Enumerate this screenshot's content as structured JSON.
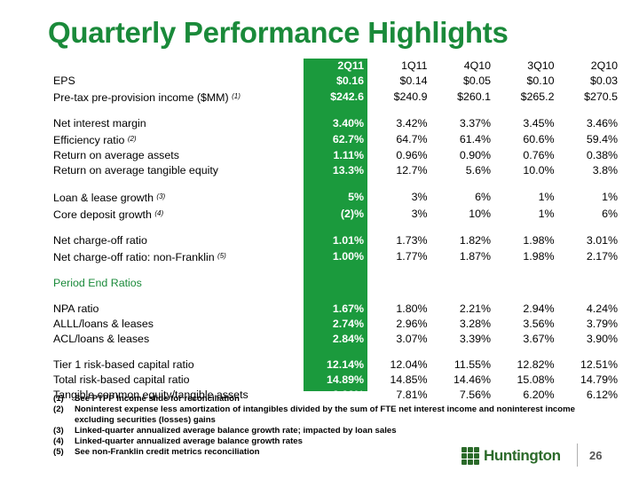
{
  "title": "Quarterly Performance Highlights",
  "columns": [
    "2Q11",
    "1Q11",
    "4Q10",
    "3Q10",
    "2Q10"
  ],
  "rows": [
    {
      "label": "EPS",
      "note": "",
      "values": [
        "$0.16",
        "$0.14",
        "$0.05",
        "$0.10",
        "$0.03"
      ]
    },
    {
      "label": "Pre-tax pre-provision income ($MM)",
      "note": "(1)",
      "values": [
        "$242.6",
        "$240.9",
        "$260.1",
        "$265.2",
        "$270.5"
      ]
    },
    {
      "label": "Net interest margin",
      "note": "",
      "values": [
        "3.40%",
        "3.42%",
        "3.37%",
        "3.45%",
        "3.46%"
      ]
    },
    {
      "label": "Efficiency ratio",
      "note": "(2)",
      "values": [
        "62.7%",
        "64.7%",
        "61.4%",
        "60.6%",
        "59.4%"
      ]
    },
    {
      "label": "Return on average assets",
      "note": "",
      "values": [
        "1.11%",
        "0.96%",
        "0.90%",
        "0.76%",
        "0.38%"
      ]
    },
    {
      "label": "Return on average tangible equity",
      "note": "",
      "values": [
        "13.3%",
        "12.7%",
        "5.6%",
        "10.0%",
        "3.8%"
      ]
    },
    {
      "label": "Loan & lease growth",
      "note": "(3)",
      "values": [
        "5%",
        "3%",
        "6%",
        "1%",
        "1%"
      ]
    },
    {
      "label": "Core deposit growth",
      "note": "(4)",
      "values": [
        "(2)%",
        "3%",
        "10%",
        "1%",
        "6%"
      ]
    },
    {
      "label": "Net charge-off ratio",
      "note": "",
      "values": [
        "1.01%",
        "1.73%",
        "1.82%",
        "1.98%",
        "3.01%"
      ]
    },
    {
      "label": "Net charge-off ratio: non-Franklin",
      "note": "(5)",
      "values": [
        "1.00%",
        "1.77%",
        "1.87%",
        "1.98%",
        "2.17%"
      ]
    },
    {
      "label": "NPA  ratio",
      "note": "",
      "values": [
        "1.67%",
        "1.80%",
        "2.21%",
        "2.94%",
        "4.24%"
      ]
    },
    {
      "label": "ALLL/loans & leases",
      "note": "",
      "values": [
        "2.74%",
        "2.96%",
        "3.28%",
        "3.56%",
        "3.79%"
      ]
    },
    {
      "label": "ACL/loans & leases",
      "note": "",
      "values": [
        "2.84%",
        "3.07%",
        "3.39%",
        "3.67%",
        "3.90%"
      ]
    },
    {
      "label": "Tier 1 risk-based capital ratio",
      "note": "",
      "values": [
        "12.14%",
        "12.04%",
        "11.55%",
        "12.82%",
        "12.51%"
      ]
    },
    {
      "label": "Total risk-based capital ratio",
      "note": "",
      "values": [
        "14.89%",
        "14.85%",
        "14.46%",
        "15.08%",
        "14.79%"
      ]
    },
    {
      "label": "Tangible common equity/tangible assets",
      "note": "",
      "values": [
        "8.22%",
        "7.81%",
        "7.56%",
        "6.20%",
        "6.12%"
      ]
    }
  ],
  "section_label": "Period End Ratios",
  "footnotes": [
    {
      "n": "(1)",
      "text": "See PTPP Income slide for reconciliation"
    },
    {
      "n": "(2)",
      "text": "Noninterest expense less amortization of intangibles divided by the sum of FTE net interest income and noninterest income excluding securities (losses) gains"
    },
    {
      "n": "(3)",
      "text": "Linked-quarter annualized average balance growth rate; impacted by loan sales"
    },
    {
      "n": "(4)",
      "text": "Linked-quarter annualized average balance growth rates"
    },
    {
      "n": "(5)",
      "text": "See non-Franklin credit metrics reconciliation"
    }
  ],
  "logo_text": "Huntington",
  "page_number": "26",
  "colors": {
    "accent": "#1a8a3a",
    "highlight_column": "#1b9a3d",
    "logo": "#2b6a2a"
  }
}
